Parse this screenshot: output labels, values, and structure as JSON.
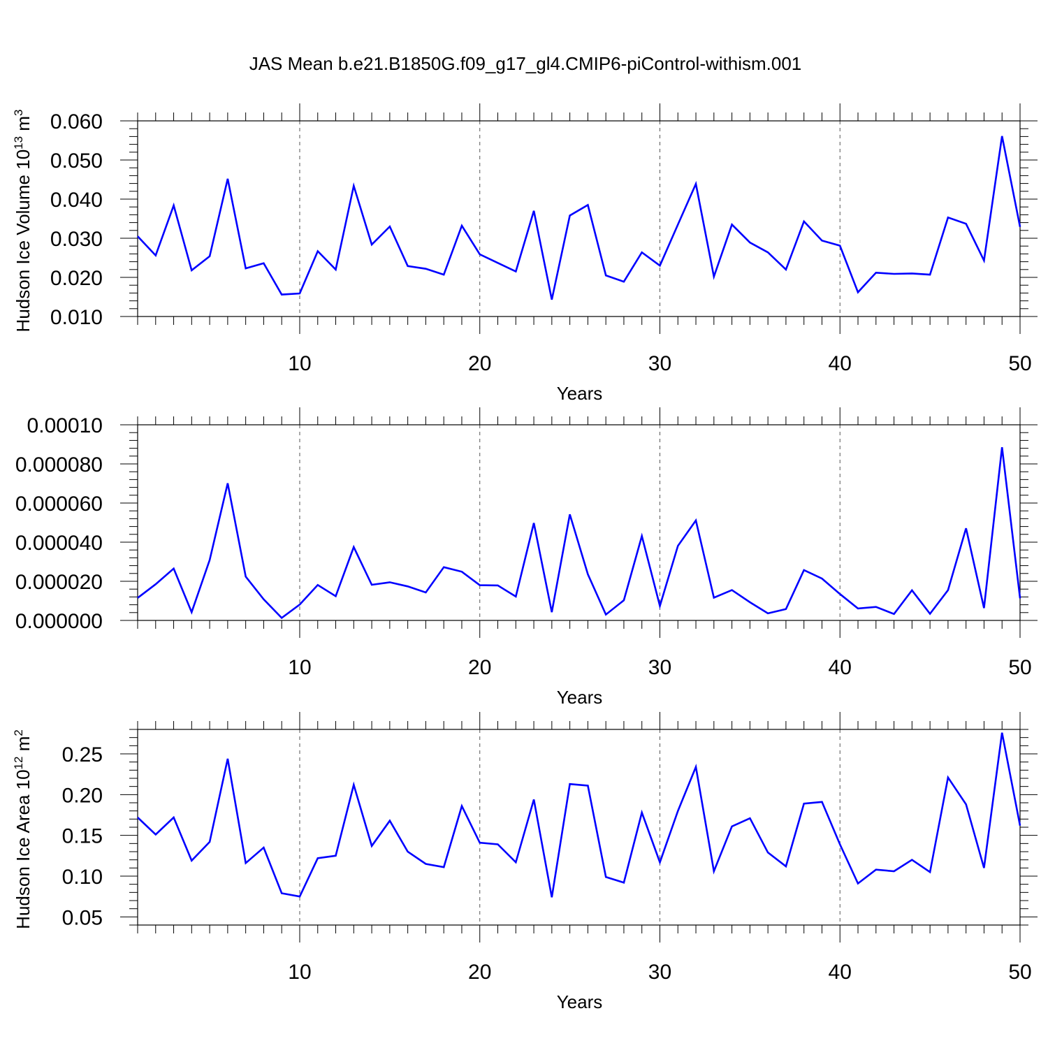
{
  "title": "JAS Mean b.e21.B1850G.f09_g17_gl4.CMIP6-piControl-withism.001",
  "colors": {
    "series": "#0000ff",
    "axis": "#000000",
    "grid": "#555555"
  },
  "chart_data": [
    {
      "type": "line",
      "ylabel": {
        "text": "Hudson Ice Volume 10",
        "sup1": "13",
        "mid": " m",
        "sup2": "3"
      },
      "xlabel": "Years",
      "xlim": [
        1,
        50
      ],
      "ylim": [
        0.01,
        0.06
      ],
      "xticks": [
        10,
        20,
        30,
        40,
        50
      ],
      "xtick_labels": [
        "10",
        "20",
        "30",
        "40",
        "50"
      ],
      "yticks": [
        0.01,
        0.02,
        0.03,
        0.04,
        0.05,
        0.06
      ],
      "ytick_labels": [
        "0.010",
        "0.020",
        "0.030",
        "0.040",
        "0.050",
        "0.060"
      ],
      "grid": "x-dashed",
      "x": [
        1,
        2,
        3,
        4,
        5,
        6,
        7,
        8,
        9,
        10,
        11,
        12,
        13,
        14,
        15,
        16,
        17,
        18,
        19,
        20,
        21,
        22,
        23,
        24,
        25,
        26,
        27,
        28,
        29,
        30,
        31,
        32,
        33,
        34,
        35,
        36,
        37,
        38,
        39,
        40,
        41,
        42,
        43,
        44,
        45,
        46,
        47,
        48,
        49,
        50
      ],
      "values": [
        0.0305,
        0.0256,
        0.0384,
        0.0218,
        0.0254,
        0.0452,
        0.0223,
        0.0236,
        0.0156,
        0.0159,
        0.0267,
        0.022,
        0.0434,
        0.0284,
        0.033,
        0.0229,
        0.0222,
        0.0207,
        0.0332,
        0.0259,
        0.0237,
        0.0215,
        0.037,
        0.0143,
        0.0358,
        0.0385,
        0.0205,
        0.0189,
        0.0264,
        0.023,
        0.0335,
        0.0439,
        0.0202,
        0.0335,
        0.0289,
        0.0264,
        0.022,
        0.0343,
        0.0294,
        0.0281,
        0.0162,
        0.0212,
        0.0209,
        0.021,
        0.0207,
        0.0353,
        0.0337,
        0.0243,
        0.0561,
        0.0329
      ]
    },
    {
      "type": "line",
      "ylabel": null,
      "xlabel": "Years",
      "xlim": [
        1,
        50
      ],
      "ylim": [
        0.0,
        0.0001
      ],
      "xticks": [
        10,
        20,
        30,
        40,
        50
      ],
      "xtick_labels": [
        "10",
        "20",
        "30",
        "40",
        "50"
      ],
      "yticks": [
        0.0,
        2e-05,
        4e-05,
        6e-05,
        8e-05,
        0.0001
      ],
      "ytick_labels": [
        "0.000000",
        "0.000020",
        "0.000040",
        "0.000060",
        "0.000080",
        "0.00010"
      ],
      "grid": "x-dashed",
      "x": [
        1,
        2,
        3,
        4,
        5,
        6,
        7,
        8,
        9,
        10,
        11,
        12,
        13,
        14,
        15,
        16,
        17,
        18,
        19,
        20,
        21,
        22,
        23,
        24,
        25,
        26,
        27,
        28,
        29,
        30,
        31,
        32,
        33,
        34,
        35,
        36,
        37,
        38,
        39,
        40,
        41,
        42,
        43,
        44,
        45,
        46,
        47,
        48,
        49,
        50
      ],
      "values": [
        1.15e-05,
        1.85e-05,
        2.65e-05,
        4.2e-06,
        3.09e-05,
        7.01e-05,
        2.24e-05,
        1.08e-05,
        1.3e-06,
        8.1e-06,
        1.81e-05,
        1.24e-05,
        3.75e-05,
        1.82e-05,
        1.95e-05,
        1.74e-05,
        1.43e-05,
        2.72e-05,
        2.49e-05,
        1.8e-05,
        1.79e-05,
        1.22e-05,
        4.98e-05,
        4.2e-06,
        5.42e-05,
        2.36e-05,
        3e-06,
        1.03e-05,
        4.31e-05,
        7.4e-06,
        3.81e-05,
        5.11e-05,
        1.16e-05,
        1.55e-05,
        9.3e-06,
        3.6e-06,
        5.8e-06,
        2.57e-05,
        2.14e-05,
        1.35e-05,
        6.1e-06,
        6.9e-06,
        3.3e-06,
        1.54e-05,
        3.4e-06,
        1.55e-05,
        4.71e-05,
        6.3e-06,
        8.85e-05,
        1.13e-05
      ]
    },
    {
      "type": "line",
      "ylabel": {
        "text": "Hudson Ice Area 10",
        "sup1": "12",
        "mid": " m",
        "sup2": "2"
      },
      "xlabel": "Years",
      "xlim": [
        1,
        50
      ],
      "ylim": [
        0.04,
        0.28
      ],
      "xticks": [
        10,
        20,
        30,
        40,
        50
      ],
      "xtick_labels": [
        "10",
        "20",
        "30",
        "40",
        "50"
      ],
      "yticks": [
        0.05,
        0.1,
        0.15,
        0.2,
        0.25
      ],
      "ytick_labels": [
        "0.05",
        "0.10",
        "0.15",
        "0.20",
        "0.25"
      ],
      "grid": "x-dashed",
      "x": [
        1,
        2,
        3,
        4,
        5,
        6,
        7,
        8,
        9,
        10,
        11,
        12,
        13,
        14,
        15,
        16,
        17,
        18,
        19,
        20,
        21,
        22,
        23,
        24,
        25,
        26,
        27,
        28,
        29,
        30,
        31,
        32,
        33,
        34,
        35,
        36,
        37,
        38,
        39,
        40,
        41,
        42,
        43,
        44,
        45,
        46,
        47,
        48,
        49,
        50
      ],
      "values": [
        0.172,
        0.151,
        0.172,
        0.119,
        0.142,
        0.244,
        0.116,
        0.135,
        0.079,
        0.075,
        0.122,
        0.125,
        0.212,
        0.137,
        0.168,
        0.13,
        0.115,
        0.111,
        0.186,
        0.141,
        0.139,
        0.117,
        0.194,
        0.074,
        0.213,
        0.211,
        0.099,
        0.092,
        0.178,
        0.117,
        0.18,
        0.234,
        0.106,
        0.161,
        0.171,
        0.129,
        0.112,
        0.189,
        0.191,
        0.139,
        0.091,
        0.108,
        0.106,
        0.12,
        0.105,
        0.221,
        0.188,
        0.11,
        0.276,
        0.162
      ]
    }
  ]
}
